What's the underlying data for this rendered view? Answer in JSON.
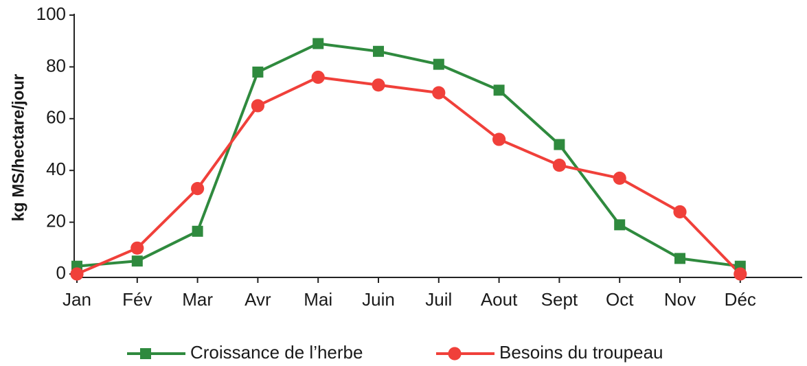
{
  "chart_data": {
    "type": "line",
    "y_label": "kg MS/hectare/jour",
    "categories": [
      "Jan",
      "Fév",
      "Mar",
      "Avr",
      "Mai",
      "Juin",
      "Juil",
      "Aout",
      "Sept",
      "Oct",
      "Nov",
      "Déc"
    ],
    "series": [
      {
        "name": "Croissance de l’herbe",
        "color": "#2f8a3e",
        "marker": "square",
        "values": [
          3,
          5,
          16.5,
          78,
          89,
          86,
          81,
          71,
          50,
          19,
          6,
          3
        ]
      },
      {
        "name": "Besoins du troupeau",
        "color": "#f0403a",
        "marker": "circle",
        "values": [
          0,
          10,
          33,
          65,
          76,
          73,
          70,
          52,
          42,
          37,
          24,
          0
        ]
      }
    ],
    "ylim": [
      0,
      100
    ],
    "yticks": [
      0,
      20,
      40,
      60,
      80,
      100
    ],
    "grid": false,
    "legend": "bottom"
  }
}
